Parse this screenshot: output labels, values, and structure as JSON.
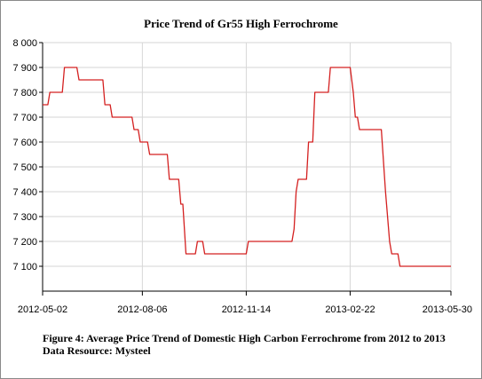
{
  "chart_data": {
    "type": "line",
    "title": "Price Trend of Gr55 High Ferrochrome",
    "xlabel": "",
    "ylabel": "",
    "xlim": [
      "2012-05-02",
      "2013-05-30"
    ],
    "ylim": [
      7000,
      8000
    ],
    "grid": true,
    "y_ticks": [
      "8 000",
      "7 900",
      "7 800",
      "7 700",
      "7 600",
      "7 500",
      "7 400",
      "7 300",
      "7 200",
      "7 100"
    ],
    "y_tick_values": [
      8000,
      7900,
      7800,
      7700,
      7600,
      7500,
      7400,
      7300,
      7200,
      7100
    ],
    "x_ticks": [
      "2012-05-02",
      "2012-08-06",
      "2012-11-14",
      "2013-02-22",
      "2013-05-30"
    ],
    "series": [
      {
        "color": "#d42020",
        "points": [
          [
            "2012-05-02",
            7750
          ],
          [
            "2012-05-07",
            7750
          ],
          [
            "2012-05-09",
            7800
          ],
          [
            "2012-05-21",
            7800
          ],
          [
            "2012-05-23",
            7900
          ],
          [
            "2012-06-04",
            7900
          ],
          [
            "2012-06-06",
            7850
          ],
          [
            "2012-06-29",
            7850
          ],
          [
            "2012-07-01",
            7750
          ],
          [
            "2012-07-06",
            7750
          ],
          [
            "2012-07-08",
            7700
          ],
          [
            "2012-07-27",
            7700
          ],
          [
            "2012-07-29",
            7650
          ],
          [
            "2012-08-02",
            7650
          ],
          [
            "2012-08-04",
            7600
          ],
          [
            "2012-08-11",
            7600
          ],
          [
            "2012-08-13",
            7550
          ],
          [
            "2012-08-30",
            7550
          ],
          [
            "2012-09-01",
            7450
          ],
          [
            "2012-09-10",
            7450
          ],
          [
            "2012-09-12",
            7350
          ],
          [
            "2012-09-14",
            7350
          ],
          [
            "2012-09-17",
            7150
          ],
          [
            "2012-09-26",
            7150
          ],
          [
            "2012-09-28",
            7200
          ],
          [
            "2012-10-03",
            7200
          ],
          [
            "2012-10-05",
            7150
          ],
          [
            "2012-11-14",
            7150
          ],
          [
            "2012-11-16",
            7200
          ],
          [
            "2012-12-28",
            7200
          ],
          [
            "2012-12-30",
            7250
          ],
          [
            "2013-01-01",
            7400
          ],
          [
            "2013-01-03",
            7450
          ],
          [
            "2013-01-11",
            7450
          ],
          [
            "2013-01-13",
            7600
          ],
          [
            "2013-01-17",
            7600
          ],
          [
            "2013-01-19",
            7800
          ],
          [
            "2013-02-01",
            7800
          ],
          [
            "2013-02-03",
            7900
          ],
          [
            "2013-02-22",
            7900
          ],
          [
            "2013-02-25",
            7800
          ],
          [
            "2013-02-27",
            7700
          ],
          [
            "2013-03-01",
            7700
          ],
          [
            "2013-03-03",
            7650
          ],
          [
            "2013-03-24",
            7650
          ],
          [
            "2013-03-28",
            7400
          ],
          [
            "2013-04-01",
            7200
          ],
          [
            "2013-04-03",
            7150
          ],
          [
            "2013-04-09",
            7150
          ],
          [
            "2013-04-11",
            7100
          ],
          [
            "2013-05-30",
            7100
          ]
        ]
      }
    ]
  },
  "caption": {
    "line1": "Figure 4: Average Price Trend of Domestic High Carbon Ferrochrome from 2012 to 2013",
    "line2": "Data Resource: Mysteel"
  }
}
